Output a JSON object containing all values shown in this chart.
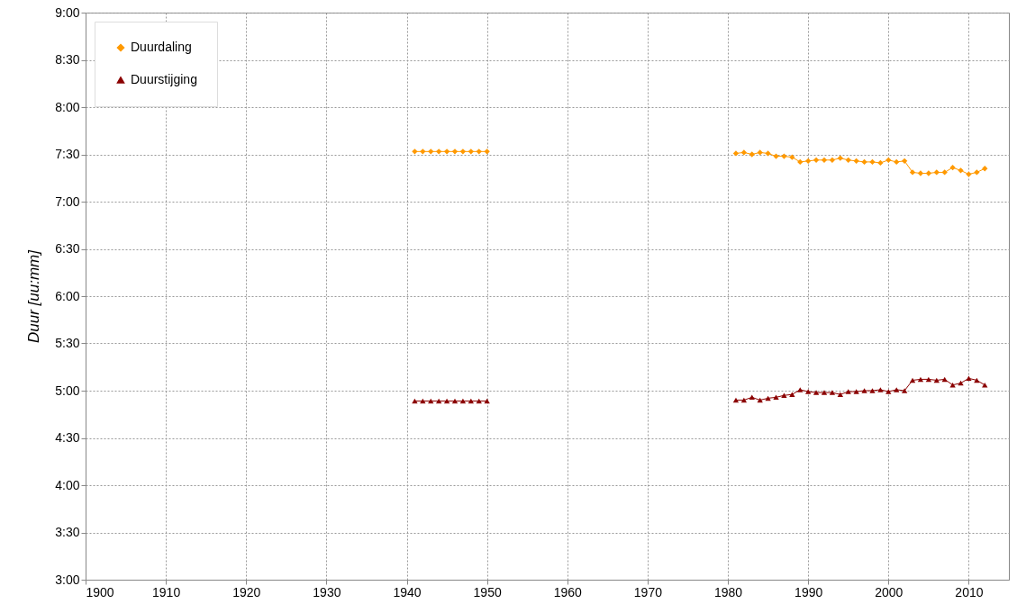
{
  "chart_data": {
    "type": "line",
    "ylabel": "Duur [uu:mm]",
    "x": [
      1941,
      1942,
      1943,
      1944,
      1945,
      1946,
      1947,
      1948,
      1949,
      1950,
      1951,
      1981,
      1982,
      1983,
      1984,
      1985,
      1986,
      1987,
      1988,
      1989,
      1990,
      1991,
      1992,
      1993,
      1994,
      1995,
      1996,
      1997,
      1998,
      1999,
      2000,
      2001,
      2002,
      2003,
      2004,
      2005,
      2006,
      2007,
      2008,
      2009,
      2010,
      2011,
      2012
    ],
    "series": [
      {
        "name": "Duurdaling",
        "color": "#ff9900",
        "marker": "diamond",
        "values": [
          7.53,
          7.53,
          7.53,
          7.53,
          7.53,
          7.53,
          7.53,
          7.53,
          7.53,
          7.53,
          null,
          7.51,
          7.52,
          7.5,
          7.52,
          7.51,
          7.48,
          7.48,
          7.47,
          7.42,
          7.43,
          7.44,
          7.44,
          7.44,
          7.46,
          7.44,
          7.43,
          7.42,
          7.42,
          7.41,
          7.44,
          7.42,
          7.43,
          7.31,
          7.3,
          7.3,
          7.31,
          7.31,
          7.36,
          7.33,
          7.29,
          7.31,
          7.35
        ]
      },
      {
        "name": "Duurstijging",
        "color": "#8b0000",
        "marker": "triangle",
        "values": [
          4.89,
          4.89,
          4.89,
          4.89,
          4.89,
          4.89,
          4.89,
          4.89,
          4.89,
          4.89,
          null,
          4.9,
          4.9,
          4.93,
          4.9,
          4.92,
          4.93,
          4.95,
          4.96,
          5.01,
          4.99,
          4.98,
          4.98,
          4.98,
          4.96,
          4.99,
          4.99,
          5.0,
          5.0,
          5.01,
          4.99,
          5.01,
          5.0,
          5.11,
          5.12,
          5.12,
          5.11,
          5.12,
          5.06,
          5.08,
          5.13,
          5.11,
          5.06
        ]
      }
    ],
    "xlim": [
      1900,
      2015
    ],
    "xticks": [
      1900,
      1910,
      1920,
      1930,
      1940,
      1950,
      1960,
      1970,
      1980,
      1990,
      2000,
      2010
    ],
    "ylim": [
      3,
      9
    ],
    "yticks": [
      {
        "value": 3,
        "label": "3:00"
      },
      {
        "value": 3.5,
        "label": "3:30"
      },
      {
        "value": 4,
        "label": "4:00"
      },
      {
        "value": 4.5,
        "label": "4:30"
      },
      {
        "value": 5,
        "label": "5:00"
      },
      {
        "value": 5.5,
        "label": "5:30"
      },
      {
        "value": 6,
        "label": "6:00"
      },
      {
        "value": 6.5,
        "label": "6:30"
      },
      {
        "value": 7,
        "label": "7:00"
      },
      {
        "value": 7.5,
        "label": "7:30"
      },
      {
        "value": 8,
        "label": "8:00"
      },
      {
        "value": 8.5,
        "label": "8:30"
      },
      {
        "value": 9,
        "label": "9:00"
      }
    ],
    "grid": true,
    "legend": "top left",
    "line_style": "solid"
  }
}
